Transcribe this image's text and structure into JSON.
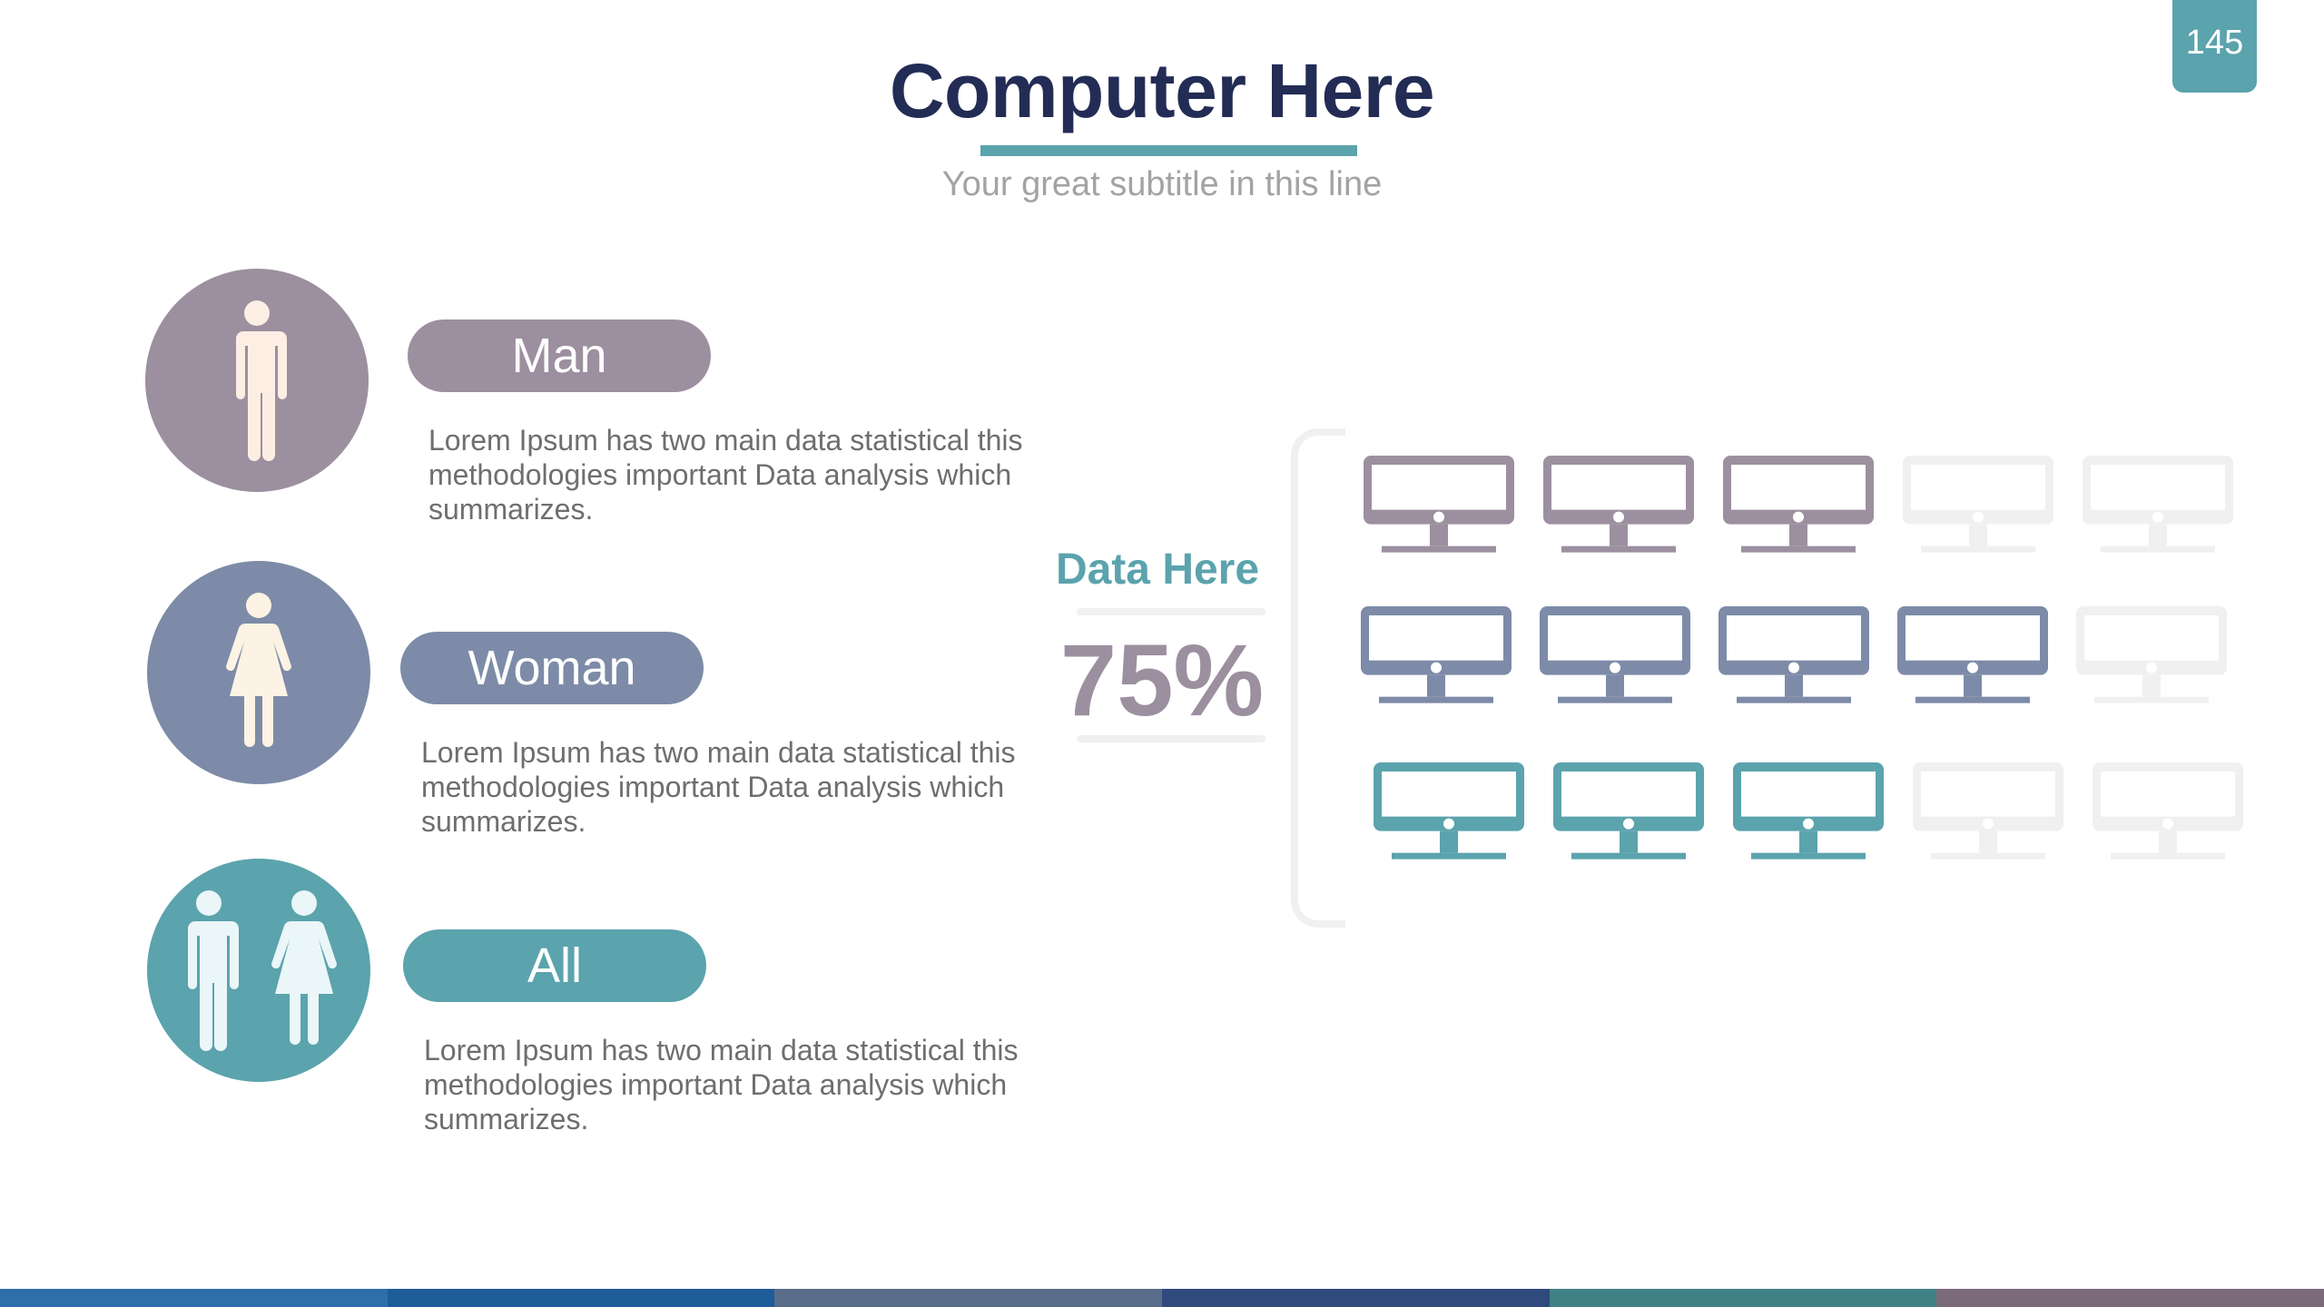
{
  "page_number": "145",
  "header": {
    "title": "Computer Here",
    "subtitle": "Your great subtitle in this line"
  },
  "rows": [
    {
      "label": "Man",
      "description": "Lorem Ipsum has two main data statistical this methodologies important Data analysis which summarizes.",
      "color": "#9c8f9f",
      "icon": "man-icon"
    },
    {
      "label": "Woman",
      "description": "Lorem Ipsum has two main data statistical this methodologies important Data analysis which summarizes.",
      "color": "#7d8ba8",
      "icon": "woman-icon"
    },
    {
      "label": "All",
      "description": "Lorem Ipsum has two main data statistical this methodologies important Data analysis which summarizes.",
      "color": "#5ba3ad",
      "icon": "people-icon"
    }
  ],
  "stat": {
    "label": "Data Here",
    "value": "75%"
  },
  "monitor_grid": {
    "columns": 5,
    "rows": [
      {
        "filled": 3,
        "color": "#9c8f9f"
      },
      {
        "filled": 4,
        "color": "#7d8ba8"
      },
      {
        "filled": 3,
        "color": "#5ba3ad"
      }
    ],
    "empty_color": "#f0f0f0"
  },
  "bottom_bar_colors": [
    "#2e6faa",
    "#1e5c9a",
    "#5a6d8b",
    "#2f4a7d",
    "#3f8286",
    "#7a6a7a"
  ]
}
